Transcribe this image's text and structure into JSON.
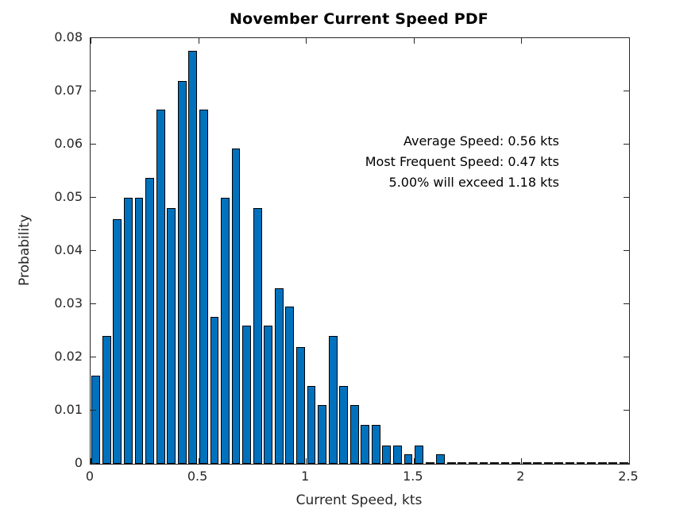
{
  "chart": {
    "title": "November Current Speed PDF",
    "xlabel": "Current Speed, kts",
    "ylabel": "Probability",
    "annotation": {
      "line1": "Average Speed: 0.56 kts",
      "line2": "Most Frequent Speed: 0.47 kts",
      "line3": "5.00% will exceed 1.18 kts"
    }
  },
  "chart_data": {
    "type": "bar",
    "title": "November Current Speed PDF",
    "xlabel": "Current Speed, kts",
    "ylabel": "Probability",
    "xlim": [
      0,
      2.5
    ],
    "ylim": [
      0,
      0.08
    ],
    "grid": false,
    "legend": "none",
    "bin_width": 0.05,
    "bar_rel_width": 0.8,
    "bar_color": "#0072BD",
    "bar_edge_color": "#000000",
    "axis_color": "#262626",
    "x_tick_labels": [
      "0",
      "0.5",
      "1",
      "1.5",
      "2",
      "2.5"
    ],
    "x_tick_values": [
      0,
      0.5,
      1,
      1.5,
      2,
      2.5
    ],
    "y_tick_labels": [
      "0",
      "0.01",
      "0.02",
      "0.03",
      "0.04",
      "0.05",
      "0.06",
      "0.07",
      "0.08"
    ],
    "y_tick_values": [
      0,
      0.01,
      0.02,
      0.03,
      0.04,
      0.05,
      0.06,
      0.07,
      0.08
    ],
    "bin_centers": [
      0.025,
      0.075,
      0.125,
      0.175,
      0.225,
      0.275,
      0.325,
      0.375,
      0.425,
      0.475,
      0.525,
      0.575,
      0.625,
      0.675,
      0.725,
      0.775,
      0.825,
      0.875,
      0.925,
      0.975,
      1.025,
      1.075,
      1.125,
      1.175,
      1.225,
      1.275,
      1.325,
      1.375,
      1.425,
      1.475,
      1.525,
      1.575,
      1.625,
      1.675,
      1.725,
      1.775,
      1.825,
      1.875,
      1.925,
      1.975,
      2.025,
      2.075,
      2.125,
      2.175,
      2.225,
      2.275,
      2.325,
      2.375,
      2.425,
      2.475
    ],
    "values": [
      0.0165,
      0.024,
      0.046,
      0.05,
      0.05,
      0.0537,
      0.0665,
      0.048,
      0.072,
      0.0776,
      0.0665,
      0.0276,
      0.05,
      0.0592,
      0.026,
      0.048,
      0.026,
      0.033,
      0.0296,
      0.022,
      0.0147,
      0.011,
      0.024,
      0.0147,
      0.011,
      0.0073,
      0.0073,
      0.0035,
      0.0035,
      0.0018,
      0.0035,
      0,
      0.0018,
      0,
      0,
      0,
      0,
      0,
      0,
      0,
      0,
      0,
      0,
      0,
      0,
      0,
      0,
      0,
      0,
      0
    ],
    "annotations": [
      "Average Speed: 0.56 kts",
      "Most Frequent Speed: 0.47 kts",
      "5.00% will exceed 1.18 kts"
    ],
    "annotation_position": "upper-right-inside"
  }
}
